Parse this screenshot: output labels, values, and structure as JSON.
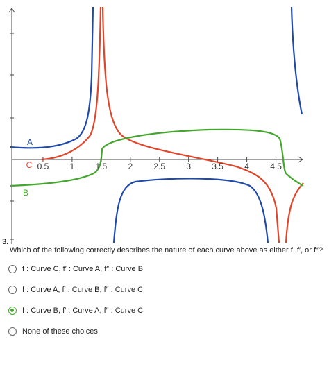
{
  "graph": {
    "xticks": [
      0.5,
      1,
      1.5,
      2,
      2.5,
      3,
      3.5,
      4,
      4.5
    ],
    "curve_labels": [
      {
        "text": "A",
        "color": "#1f4aa8"
      },
      {
        "text": "C",
        "color": "#e0452a"
      },
      {
        "text": "B",
        "color": "#44a62e"
      }
    ]
  },
  "question": {
    "number": "3.",
    "text": "Which of the following correctly describes the nature of each curve above as either f, f′, or f″?"
  },
  "options": [
    "f : Curve C, f′ : Curve A, f″ : Curve B",
    "f : Curve A, f′ : Curve B, f″ : Curve C",
    "f : Curve B, f′ : Curve A, f″ : Curve C",
    "None of these choices"
  ],
  "selected": 2
}
